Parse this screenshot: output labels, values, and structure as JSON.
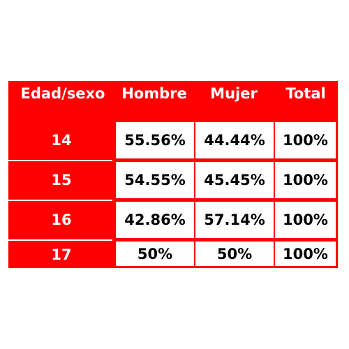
{
  "chart_data": {
    "type": "table",
    "columns": [
      "Edad/sexo",
      "Hombre",
      "Mujer",
      "Total"
    ],
    "rows": [
      {
        "label": "14",
        "values": [
          "55.56%",
          "44.44%",
          "100%"
        ]
      },
      {
        "label": "15",
        "values": [
          "54.55%",
          "45.45%",
          "100%"
        ]
      },
      {
        "label": "16",
        "values": [
          "42.86%",
          "57.14%",
          "100%"
        ]
      },
      {
        "label": "17",
        "values": [
          "50%",
          "50%",
          "100%"
        ]
      }
    ]
  },
  "colors": {
    "background": "#ff0000",
    "cell": "#ffffff",
    "header_text": "#ffffff",
    "data_text": "#000000"
  }
}
